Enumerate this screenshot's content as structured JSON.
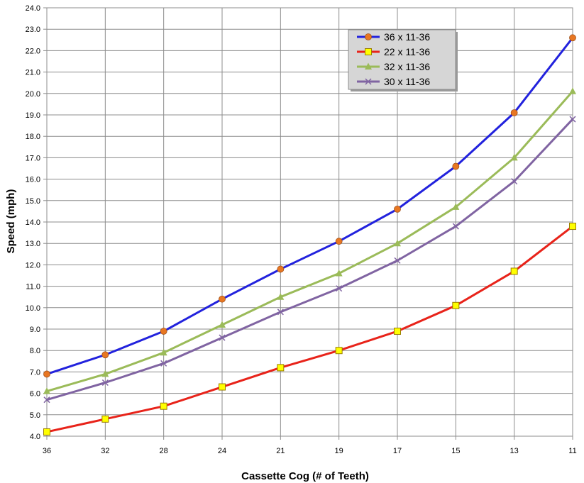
{
  "chart_data": {
    "type": "line",
    "title": "",
    "xlabel": "Cassette Cog (# of Teeth)",
    "ylabel": "Speed (mph)",
    "categories": [
      "36",
      "32",
      "28",
      "24",
      "21",
      "19",
      "17",
      "15",
      "13",
      "11"
    ],
    "ylim": [
      4.0,
      24.0
    ],
    "ytick_step": 1.0,
    "ytick_labels": [
      "4.0",
      "5.0",
      "6.0",
      "7.0",
      "8.0",
      "9.0",
      "10.0",
      "11.0",
      "12.0",
      "13.0",
      "14.0",
      "15.0",
      "16.0",
      "17.0",
      "18.0",
      "19.0",
      "20.0",
      "21.0",
      "22.0",
      "23.0",
      "24.0"
    ],
    "grid": true,
    "legend_position": "top-right",
    "series": [
      {
        "name": "36 x 11-36",
        "color": "#2222DD",
        "marker": "circle",
        "marker_color": "#E87722",
        "values": [
          6.9,
          7.8,
          8.9,
          10.4,
          11.8,
          13.1,
          14.6,
          16.6,
          19.1,
          22.6
        ]
      },
      {
        "name": "22 x 11-36",
        "color": "#E8231A",
        "marker": "square",
        "marker_color": "#FFFF00",
        "values": [
          4.2,
          4.8,
          5.4,
          6.3,
          7.2,
          8.0,
          8.9,
          10.1,
          11.7,
          13.8
        ]
      },
      {
        "name": "32 x 11-36",
        "color": "#9BBB59",
        "marker": "triangle",
        "marker_color": "#9BBB59",
        "values": [
          6.1,
          6.9,
          7.9,
          9.2,
          10.5,
          11.6,
          13.0,
          14.7,
          17.0,
          20.1
        ]
      },
      {
        "name": "30 x 11-36",
        "color": "#8064A2",
        "marker": "x",
        "marker_color": "#8064A2",
        "values": [
          5.7,
          6.5,
          7.4,
          8.6,
          9.8,
          10.9,
          12.2,
          13.8,
          15.9,
          18.8
        ]
      }
    ]
  }
}
